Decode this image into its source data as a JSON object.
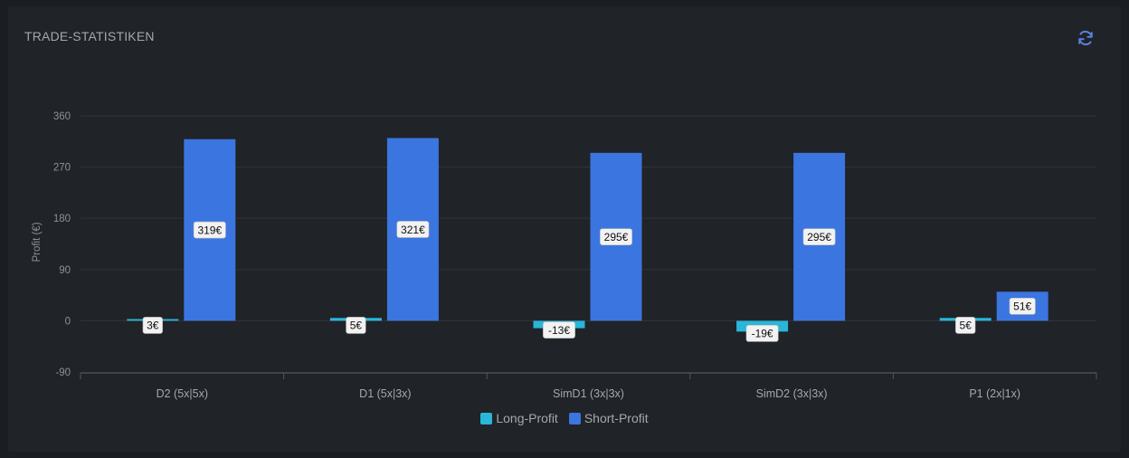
{
  "header": {
    "title": "TRADE-STATISTIKEN",
    "refresh_icon": "refresh-icon"
  },
  "colors": {
    "long": "#29b6d9",
    "short": "#3b75e0",
    "accent": "#5b7fe0"
  },
  "chart_data": {
    "type": "bar",
    "title": "",
    "xlabel": "",
    "ylabel": "Profit (€)",
    "ylim": [
      -90,
      360
    ],
    "yticks": [
      360,
      270,
      180,
      90,
      0,
      -90
    ],
    "grid": true,
    "legend_position": "bottom",
    "categories": [
      "D2 (5x|5x)",
      "D1 (5x|3x)",
      "SimD1 (3x|3x)",
      "SimD2 (3x|3x)",
      "P1 (2x|1x)"
    ],
    "series": [
      {
        "name": "Long-Profit",
        "values": [
          3,
          5,
          -13,
          -19,
          5
        ],
        "labels": [
          "3€",
          "5€",
          "-13€",
          "-19€",
          "5€"
        ]
      },
      {
        "name": "Short-Profit",
        "values": [
          319,
          321,
          295,
          295,
          51
        ],
        "labels": [
          "319€",
          "321€",
          "295€",
          "295€",
          "51€"
        ]
      }
    ]
  }
}
